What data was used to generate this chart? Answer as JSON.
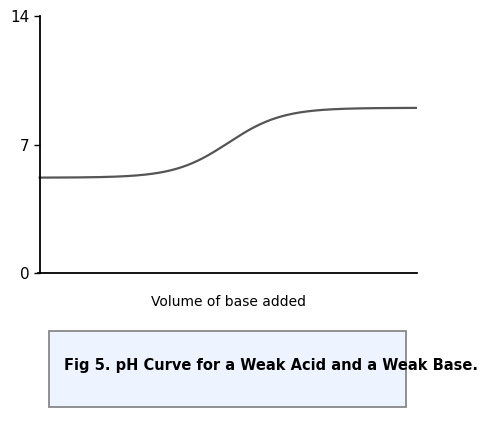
{
  "yticks": [
    0,
    7,
    14
  ],
  "ytick_labels": [
    "0",
    "7",
    "14"
  ],
  "ylim": [
    0,
    14
  ],
  "xlim": [
    0,
    10
  ],
  "xlabel": "Volume of base added",
  "curve_color": "#555555",
  "curve_linewidth": 1.6,
  "bg_color": "#ffffff",
  "caption": "Fig 5. pH Curve for a Weak Acid and a Weak Base.",
  "caption_fontsize": 10.5,
  "axis_label_fontsize": 10,
  "tick_fontsize": 11,
  "caption_bg": "#eef4ff",
  "curve_start_ph": 5.2,
  "curve_end_ph": 9.0,
  "curve_inflection_x": 5.0,
  "curve_steepness": 1.4
}
